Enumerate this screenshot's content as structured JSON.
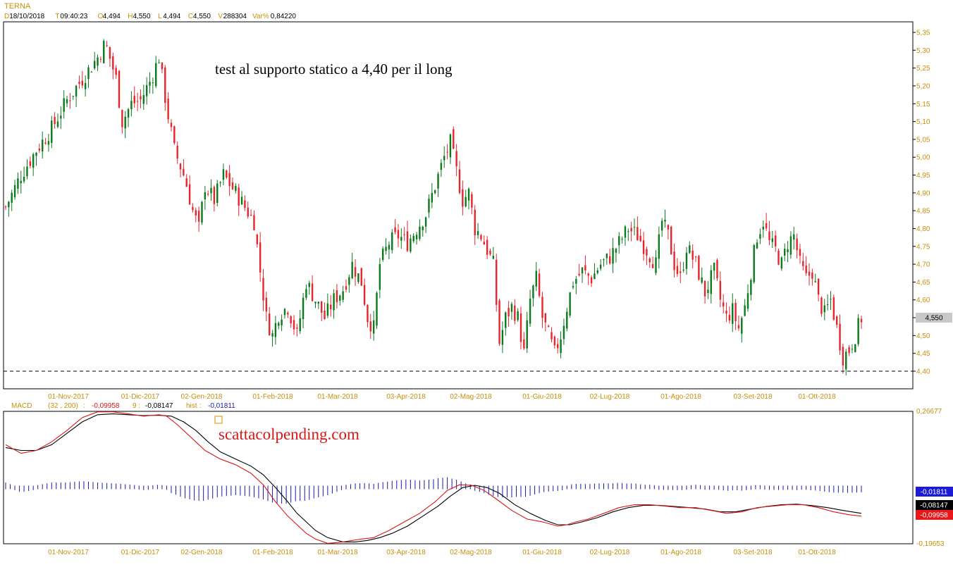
{
  "header": {
    "symbol": "TERNA",
    "quote": [
      {
        "key": "D",
        "value": "18/10/2018"
      },
      {
        "key": "T",
        "value": "09:40:23"
      },
      {
        "key": "O",
        "value": "4,494"
      },
      {
        "key": "H",
        "value": "4,550"
      },
      {
        "key": "L",
        "value": "4,494"
      },
      {
        "key": "C",
        "value": "4,550"
      },
      {
        "key": "V",
        "value": "288304"
      },
      {
        "key": "Var%",
        "value": "0,84220"
      }
    ]
  },
  "annotations": {
    "price_note": "test al supporto statico a 4,40 per il long",
    "watermark": "scattacolpending.com"
  },
  "colors": {
    "up": "#0a7a1c",
    "down": "#e8242c",
    "axis_text": "#c8900a",
    "macd_line": "#d81818",
    "signal_line": "#000000",
    "hist": "#1a1aa8"
  },
  "chart_data": [
    {
      "type": "candlestick",
      "id": "price",
      "ylim": [
        4.38,
        5.38
      ],
      "yticks": [
        "5,35",
        "5,30",
        "5,25",
        "5,20",
        "5,15",
        "5,10",
        "5,05",
        "5,00",
        "4,95",
        "4,90",
        "4,85",
        "4,80",
        "4,75",
        "4,70",
        "4,65",
        "4,60",
        "4,55",
        "4,50",
        "4,45",
        "4,40"
      ],
      "xticks": [
        "01-Nov-2017",
        "01-Dic-2017",
        "02-Gen-2018",
        "01-Feb-2018",
        "01-Mar-2018",
        "03-Apr-2018",
        "02-Mag-2018",
        "01-Giu-2018",
        "02-Lug-2018",
        "01-Ago-2018",
        "03-Set-2018",
        "01-Ott-2018"
      ],
      "last_value": "4,550",
      "support_level": 4.4,
      "close_path": [
        [
          0,
          4.86
        ],
        [
          10,
          4.95
        ],
        [
          20,
          5.02
        ],
        [
          30,
          5.08
        ],
        [
          40,
          5.16
        ],
        [
          50,
          5.22
        ],
        [
          60,
          5.28
        ],
        [
          65,
          5.32
        ],
        [
          72,
          5.22
        ],
        [
          76,
          5.1
        ],
        [
          82,
          5.15
        ],
        [
          88,
          5.16
        ],
        [
          95,
          5.22
        ],
        [
          100,
          5.28
        ],
        [
          105,
          5.14
        ],
        [
          110,
          5.02
        ],
        [
          117,
          4.94
        ],
        [
          122,
          4.85
        ],
        [
          126,
          4.8
        ],
        [
          130,
          4.92
        ],
        [
          136,
          4.88
        ],
        [
          142,
          4.95
        ],
        [
          150,
          4.9
        ],
        [
          156,
          4.86
        ],
        [
          162,
          4.82
        ],
        [
          166,
          4.68
        ],
        [
          170,
          4.55
        ],
        [
          174,
          4.5
        ],
        [
          178,
          4.56
        ],
        [
          184,
          4.58
        ],
        [
          190,
          4.5
        ],
        [
          196,
          4.65
        ],
        [
          202,
          4.6
        ],
        [
          208,
          4.55
        ],
        [
          214,
          4.6
        ],
        [
          220,
          4.63
        ],
        [
          226,
          4.7
        ],
        [
          232,
          4.65
        ],
        [
          236,
          4.55
        ],
        [
          240,
          4.52
        ],
        [
          244,
          4.7
        ],
        [
          250,
          4.76
        ],
        [
          256,
          4.78
        ],
        [
          262,
          4.76
        ],
        [
          268,
          4.8
        ],
        [
          274,
          4.84
        ],
        [
          280,
          4.92
        ],
        [
          286,
          5.0
        ],
        [
          290,
          5.04
        ],
        [
          294,
          4.96
        ],
        [
          298,
          4.88
        ],
        [
          302,
          4.9
        ],
        [
          306,
          4.8
        ],
        [
          310,
          4.78
        ],
        [
          314,
          4.74
        ],
        [
          318,
          4.7
        ],
        [
          322,
          4.48
        ],
        [
          326,
          4.55
        ],
        [
          330,
          4.58
        ],
        [
          334,
          4.55
        ],
        [
          338,
          4.45
        ],
        [
          342,
          4.6
        ],
        [
          346,
          4.66
        ],
        [
          350,
          4.55
        ],
        [
          354,
          4.5
        ],
        [
          358,
          4.45
        ],
        [
          362,
          4.5
        ],
        [
          366,
          4.58
        ],
        [
          370,
          4.65
        ],
        [
          376,
          4.68
        ],
        [
          382,
          4.66
        ],
        [
          388,
          4.7
        ],
        [
          394,
          4.72
        ],
        [
          400,
          4.76
        ],
        [
          406,
          4.8
        ],
        [
          412,
          4.78
        ],
        [
          418,
          4.74
        ],
        [
          424,
          4.7
        ],
        [
          428,
          4.82
        ],
        [
          432,
          4.78
        ],
        [
          436,
          4.7
        ],
        [
          440,
          4.66
        ],
        [
          444,
          4.75
        ],
        [
          450,
          4.7
        ],
        [
          456,
          4.62
        ],
        [
          462,
          4.68
        ],
        [
          466,
          4.6
        ],
        [
          470,
          4.55
        ],
        [
          474,
          4.57
        ],
        [
          478,
          4.52
        ],
        [
          482,
          4.58
        ],
        [
          486,
          4.68
        ],
        [
          490,
          4.78
        ],
        [
          494,
          4.82
        ],
        [
          498,
          4.76
        ],
        [
          502,
          4.74
        ],
        [
          506,
          4.7
        ],
        [
          510,
          4.76
        ],
        [
          514,
          4.78
        ],
        [
          518,
          4.7
        ],
        [
          522,
          4.66
        ],
        [
          526,
          4.68
        ],
        [
          530,
          4.6
        ],
        [
          534,
          4.56
        ],
        [
          538,
          4.6
        ],
        [
          542,
          4.52
        ],
        [
          546,
          4.44
        ],
        [
          550,
          4.46
        ],
        [
          554,
          4.5
        ],
        [
          558,
          4.55
        ]
      ],
      "dashed_level_label": "4,40"
    },
    {
      "type": "macd",
      "id": "macd",
      "title": "MACD",
      "params": "(32 , 200)",
      "macd_value": "-0,09958",
      "signal_period": "9",
      "signal_value": "-0,08147",
      "hist_label": "hist",
      "hist_value": "-0,01811",
      "ylim": [
        -0.19653,
        0.26677
      ],
      "yticks": [
        "0,26677",
        "-0,19653"
      ],
      "value_labels": [
        "-0,01811",
        "-0,08147",
        "-0,09958"
      ],
      "macd_path": [
        [
          0,
          0.15
        ],
        [
          10,
          0.12
        ],
        [
          20,
          0.13
        ],
        [
          30,
          0.16
        ],
        [
          40,
          0.2
        ],
        [
          50,
          0.245
        ],
        [
          60,
          0.265
        ],
        [
          70,
          0.265
        ],
        [
          80,
          0.258
        ],
        [
          90,
          0.25
        ],
        [
          100,
          0.255
        ],
        [
          105,
          0.25
        ],
        [
          112,
          0.22
        ],
        [
          120,
          0.18
        ],
        [
          130,
          0.13
        ],
        [
          140,
          0.1
        ],
        [
          150,
          0.08
        ],
        [
          160,
          0.05
        ],
        [
          168,
          0.01
        ],
        [
          176,
          -0.05
        ],
        [
          184,
          -0.1
        ],
        [
          190,
          -0.13
        ],
        [
          196,
          -0.16
        ],
        [
          202,
          -0.18
        ],
        [
          210,
          -0.195
        ],
        [
          220,
          -0.19
        ],
        [
          226,
          -0.185
        ],
        [
          232,
          -0.18
        ],
        [
          240,
          -0.175
        ],
        [
          250,
          -0.15
        ],
        [
          260,
          -0.12
        ],
        [
          270,
          -0.09
        ],
        [
          280,
          -0.05
        ],
        [
          288,
          -0.01
        ],
        [
          296,
          0.01
        ],
        [
          304,
          0.008
        ],
        [
          312,
          -0.01
        ],
        [
          320,
          -0.04
        ],
        [
          330,
          -0.08
        ],
        [
          340,
          -0.11
        ],
        [
          350,
          -0.12
        ],
        [
          360,
          -0.135
        ],
        [
          366,
          -0.13
        ],
        [
          372,
          -0.12
        ],
        [
          380,
          -0.11
        ],
        [
          390,
          -0.09
        ],
        [
          400,
          -0.07
        ],
        [
          410,
          -0.06
        ],
        [
          420,
          -0.06
        ],
        [
          430,
          -0.065
        ],
        [
          440,
          -0.07
        ],
        [
          450,
          -0.07
        ],
        [
          460,
          -0.08
        ],
        [
          470,
          -0.09
        ],
        [
          480,
          -0.085
        ],
        [
          490,
          -0.07
        ],
        [
          500,
          -0.065
        ],
        [
          510,
          -0.06
        ],
        [
          520,
          -0.06
        ],
        [
          530,
          -0.07
        ],
        [
          540,
          -0.085
        ],
        [
          550,
          -0.095
        ],
        [
          558,
          -0.1
        ]
      ],
      "signal_path": [
        [
          0,
          0.14
        ],
        [
          10,
          0.13
        ],
        [
          20,
          0.13
        ],
        [
          30,
          0.15
        ],
        [
          40,
          0.19
        ],
        [
          50,
          0.23
        ],
        [
          60,
          0.255
        ],
        [
          70,
          0.258
        ],
        [
          80,
          0.255
        ],
        [
          90,
          0.252
        ],
        [
          100,
          0.253
        ],
        [
          108,
          0.25
        ],
        [
          116,
          0.23
        ],
        [
          124,
          0.2
        ],
        [
          132,
          0.16
        ],
        [
          140,
          0.125
        ],
        [
          150,
          0.1
        ],
        [
          160,
          0.075
        ],
        [
          168,
          0.045
        ],
        [
          176,
          0.0
        ],
        [
          184,
          -0.05
        ],
        [
          190,
          -0.09
        ],
        [
          196,
          -0.12
        ],
        [
          202,
          -0.15
        ],
        [
          210,
          -0.175
        ],
        [
          220,
          -0.19
        ],
        [
          228,
          -0.19
        ],
        [
          236,
          -0.185
        ],
        [
          244,
          -0.175
        ],
        [
          252,
          -0.16
        ],
        [
          262,
          -0.135
        ],
        [
          272,
          -0.1
        ],
        [
          282,
          -0.065
        ],
        [
          290,
          -0.03
        ],
        [
          298,
          0.0
        ],
        [
          306,
          0.008
        ],
        [
          314,
          0.0
        ],
        [
          322,
          -0.02
        ],
        [
          332,
          -0.06
        ],
        [
          342,
          -0.09
        ],
        [
          352,
          -0.115
        ],
        [
          360,
          -0.13
        ],
        [
          368,
          -0.13
        ],
        [
          376,
          -0.12
        ],
        [
          386,
          -0.105
        ],
        [
          396,
          -0.085
        ],
        [
          406,
          -0.07
        ],
        [
          416,
          -0.062
        ],
        [
          426,
          -0.062
        ],
        [
          436,
          -0.066
        ],
        [
          446,
          -0.07
        ],
        [
          456,
          -0.075
        ],
        [
          466,
          -0.085
        ],
        [
          476,
          -0.085
        ],
        [
          486,
          -0.075
        ],
        [
          496,
          -0.066
        ],
        [
          506,
          -0.06
        ],
        [
          516,
          -0.058
        ],
        [
          526,
          -0.063
        ],
        [
          536,
          -0.07
        ],
        [
          546,
          -0.08
        ],
        [
          558,
          -0.09
        ]
      ]
    }
  ]
}
